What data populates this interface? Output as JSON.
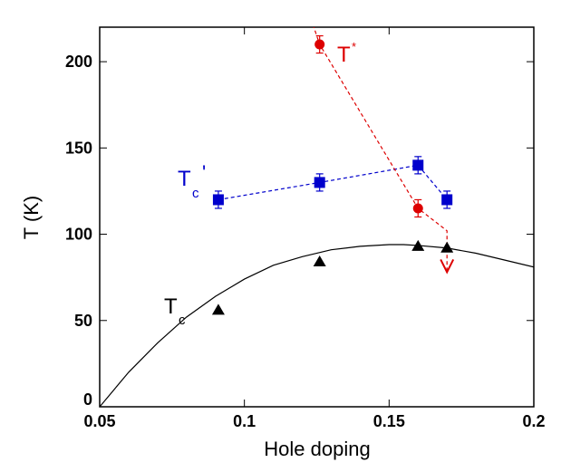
{
  "chart_data": {
    "type": "scatter",
    "title": "",
    "xlabel": "Hole doping",
    "ylabel": "T (K)",
    "xlim": [
      0.05,
      0.2
    ],
    "ylim": [
      0,
      220
    ],
    "x_ticks": [
      0.05,
      0.1,
      0.15,
      0.2
    ],
    "x_tick_labels": [
      "0.05",
      "0.1",
      "0.15",
      "0.2"
    ],
    "y_ticks": [
      0,
      50,
      100,
      150,
      200
    ],
    "y_tick_labels": [
      "0",
      "50",
      "100",
      "150",
      "200"
    ],
    "grid": false,
    "series": [
      {
        "name": "Tc",
        "label_main": "T",
        "label_sub": "c",
        "marker": "triangle",
        "color": "#000000",
        "x": [
          0.091,
          0.126,
          0.16,
          0.17
        ],
        "y": [
          56,
          84,
          93,
          92
        ]
      },
      {
        "name": "Tc fit",
        "style": "solid-curve",
        "color": "#000000",
        "x": [
          0.05,
          0.06,
          0.07,
          0.08,
          0.09,
          0.1,
          0.11,
          0.12,
          0.13,
          0.14,
          0.15,
          0.155,
          0.16,
          0.17,
          0.18,
          0.19,
          0.2
        ],
        "y": [
          0,
          20,
          37,
          52,
          64,
          74,
          82,
          87,
          91,
          93,
          94,
          94,
          93.5,
          92,
          89,
          85,
          81
        ]
      },
      {
        "name": "Tc'",
        "label_main": "T",
        "label_sub": "c",
        "label_prime": "'",
        "marker": "square",
        "style": "dashed",
        "color": "#0000cc",
        "x": [
          0.091,
          0.126,
          0.16,
          0.17
        ],
        "y": [
          120,
          130,
          140,
          120
        ],
        "err": [
          5,
          5,
          5,
          5
        ]
      },
      {
        "name": "T*",
        "label_main": "T",
        "label_sup": "*",
        "marker": "circle",
        "style": "dashed",
        "color": "#dd0000",
        "x": [
          0.126,
          0.16
        ],
        "y": [
          210,
          115
        ],
        "err": [
          5,
          5
        ],
        "line_x": [
          0.123,
          0.126,
          0.16,
          0.17,
          0.17
        ],
        "line_y": [
          225,
          210,
          115,
          102,
          78
        ],
        "arrow": {
          "x": 0.17,
          "y_from": 102,
          "y_to": 78
        }
      }
    ]
  }
}
